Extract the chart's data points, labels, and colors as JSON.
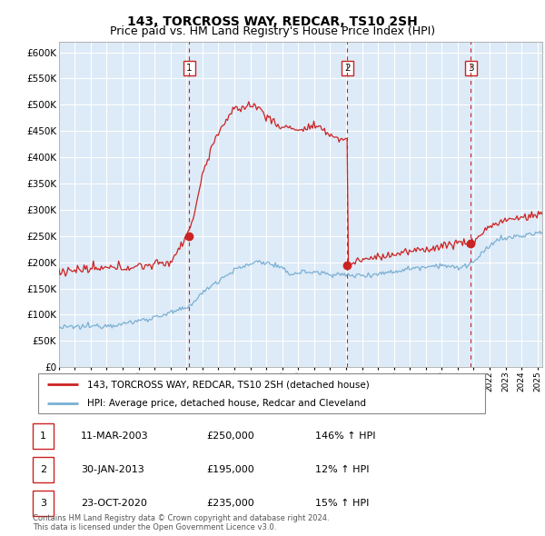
{
  "title": "143, TORCROSS WAY, REDCAR, TS10 2SH",
  "subtitle": "Price paid vs. HM Land Registry's House Price Index (HPI)",
  "ylim": [
    0,
    620000
  ],
  "xlim_start": 1995.0,
  "xlim_end": 2025.3,
  "background_color": "#ddeaf7",
  "red_line_color": "#cc2222",
  "blue_line_color": "#7ab0d4",
  "vline_color": "#cc2222",
  "sale_points": [
    {
      "date_num": 2003.18,
      "price": 250000,
      "label": "1"
    },
    {
      "date_num": 2013.08,
      "price": 195000,
      "label": "2"
    },
    {
      "date_num": 2020.81,
      "price": 235000,
      "label": "3"
    }
  ],
  "legend_red_label": "143, TORCROSS WAY, REDCAR, TS10 2SH (detached house)",
  "legend_blue_label": "HPI: Average price, detached house, Redcar and Cleveland",
  "table_rows": [
    {
      "num": "1",
      "date": "11-MAR-2003",
      "price": "£250,000",
      "hpi": "146% ↑ HPI"
    },
    {
      "num": "2",
      "date": "30-JAN-2013",
      "price": "£195,000",
      "hpi": "12% ↑ HPI"
    },
    {
      "num": "3",
      "date": "23-OCT-2020",
      "price": "£235,000",
      "hpi": "15% ↑ HPI"
    }
  ],
  "footer": "Contains HM Land Registry data © Crown copyright and database right 2024.\nThis data is licensed under the Open Government Licence v3.0.",
  "title_fontsize": 10,
  "subtitle_fontsize": 9
}
